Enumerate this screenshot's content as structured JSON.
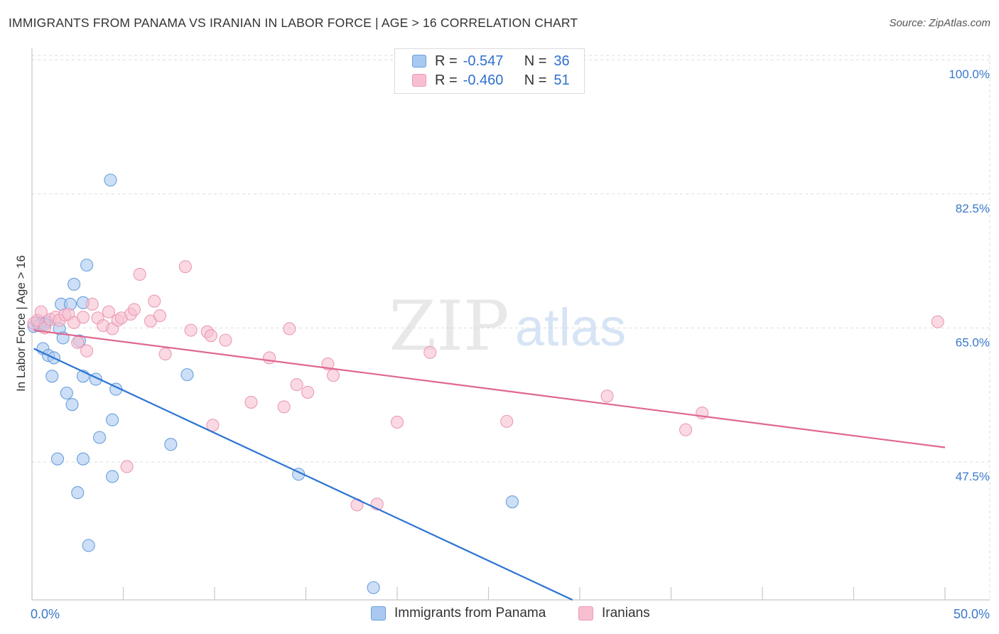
{
  "header": {
    "title": "IMMIGRANTS FROM PANAMA VS IRANIAN IN LABOR FORCE | AGE > 16 CORRELATION CHART",
    "source": "Source: ZipAtlas.com"
  },
  "legend": {
    "r_label": "R =",
    "n_label": "N =",
    "panama": {
      "r": "-0.547",
      "n": "36"
    },
    "iranians": {
      "r": "-0.460",
      "n": "51"
    }
  },
  "watermark": {
    "zip": "ZIP",
    "atlas": "atlas"
  },
  "colors": {
    "panama_fill": "#aac9f0",
    "panama_stroke": "#6a9fde",
    "panama_line": "#2b74d4",
    "iran_fill": "#f7bfd0",
    "iran_stroke": "#ec9ab5",
    "iran_line": "#e0678f",
    "axis_label": "#3a78cc",
    "grid": "#dddddd"
  },
  "chart_data": {
    "type": "scatter",
    "title": "IMMIGRANTS FROM PANAMA VS IRANIAN IN LABOR FORCE | AGE > 16 CORRELATION CHART",
    "xlabel": "",
    "ylabel": "In Labor Force | Age > 16",
    "xlim": [
      0,
      50
    ],
    "ylim": [
      29.5,
      101.5
    ],
    "x_tick_labels": [
      "0.0%",
      "50.0%"
    ],
    "y_ticks": [
      {
        "value": 100,
        "label": "100.0%"
      },
      {
        "value": 82.5,
        "label": "82.5%"
      },
      {
        "value": 65,
        "label": "65.0%"
      },
      {
        "value": 47.5,
        "label": "47.5%"
      }
    ],
    "grid": true,
    "legend_position": "top-center",
    "series": [
      {
        "name": "Immigrants from Panama",
        "r": -0.547,
        "n": 36,
        "trend": {
          "x0": 0.1,
          "y0": 62.3,
          "x1": 29.6,
          "y1": 29.5
        },
        "points": [
          [
            0.1,
            65.2
          ],
          [
            0.3,
            65.7
          ],
          [
            0.5,
            65.6
          ],
          [
            0.8,
            65.8
          ],
          [
            0.6,
            62.3
          ],
          [
            0.9,
            61.4
          ],
          [
            1.2,
            61.1
          ],
          [
            1.1,
            58.7
          ],
          [
            1.5,
            64.9
          ],
          [
            1.7,
            63.7
          ],
          [
            1.6,
            68.1
          ],
          [
            2.1,
            68.1
          ],
          [
            2.3,
            70.7
          ],
          [
            2.8,
            68.3
          ],
          [
            2.6,
            63.3
          ],
          [
            3.0,
            73.2
          ],
          [
            2.8,
            58.7
          ],
          [
            3.5,
            58.3
          ],
          [
            1.9,
            56.5
          ],
          [
            2.2,
            55.0
          ],
          [
            4.3,
            84.3
          ],
          [
            4.6,
            57.0
          ],
          [
            4.4,
            53.0
          ],
          [
            3.7,
            50.7
          ],
          [
            1.4,
            47.9
          ],
          [
            2.8,
            47.9
          ],
          [
            4.4,
            45.6
          ],
          [
            2.5,
            43.5
          ],
          [
            3.1,
            36.6
          ],
          [
            7.6,
            49.8
          ],
          [
            8.5,
            58.9
          ],
          [
            14.6,
            45.9
          ],
          [
            26.3,
            42.3
          ],
          [
            18.7,
            31.1
          ],
          [
            0.4,
            65.3
          ],
          [
            0.7,
            65.5
          ]
        ]
      },
      {
        "name": "Iranians",
        "r": -0.46,
        "n": 51,
        "trend": {
          "x0": 0.1,
          "y0": 64.7,
          "x1": 50.0,
          "y1": 49.4
        },
        "points": [
          [
            0.1,
            65.6
          ],
          [
            0.3,
            66.0
          ],
          [
            0.5,
            67.1
          ],
          [
            0.7,
            65.0
          ],
          [
            1.0,
            66.1
          ],
          [
            1.3,
            66.4
          ],
          [
            1.5,
            66.0
          ],
          [
            1.8,
            66.7
          ],
          [
            2.0,
            66.8
          ],
          [
            2.3,
            65.7
          ],
          [
            2.5,
            63.1
          ],
          [
            2.8,
            66.4
          ],
          [
            3.0,
            62.0
          ],
          [
            3.3,
            68.1
          ],
          [
            3.6,
            66.3
          ],
          [
            3.9,
            65.3
          ],
          [
            4.2,
            67.1
          ],
          [
            4.4,
            64.9
          ],
          [
            4.7,
            66.0
          ],
          [
            4.9,
            66.3
          ],
          [
            5.4,
            66.8
          ],
          [
            5.6,
            67.4
          ],
          [
            5.9,
            72.0
          ],
          [
            6.5,
            65.9
          ],
          [
            6.7,
            68.5
          ],
          [
            7.0,
            66.6
          ],
          [
            7.3,
            61.6
          ],
          [
            8.4,
            73.0
          ],
          [
            8.7,
            64.7
          ],
          [
            9.6,
            64.5
          ],
          [
            9.8,
            64.0
          ],
          [
            10.6,
            63.4
          ],
          [
            9.9,
            52.3
          ],
          [
            12.0,
            55.3
          ],
          [
            13.0,
            61.1
          ],
          [
            13.8,
            54.7
          ],
          [
            14.1,
            64.9
          ],
          [
            14.5,
            57.6
          ],
          [
            15.1,
            56.6
          ],
          [
            16.2,
            60.3
          ],
          [
            16.5,
            58.8
          ],
          [
            17.8,
            41.9
          ],
          [
            18.9,
            42.0
          ],
          [
            20.0,
            52.7
          ],
          [
            21.8,
            61.8
          ],
          [
            26.0,
            52.8
          ],
          [
            31.5,
            56.1
          ],
          [
            35.8,
            51.7
          ],
          [
            36.7,
            53.9
          ],
          [
            49.6,
            65.8
          ],
          [
            5.2,
            46.9
          ]
        ]
      }
    ]
  },
  "bottom_legend": {
    "panama_label": "Immigrants from Panama",
    "iran_label": "Iranians"
  }
}
